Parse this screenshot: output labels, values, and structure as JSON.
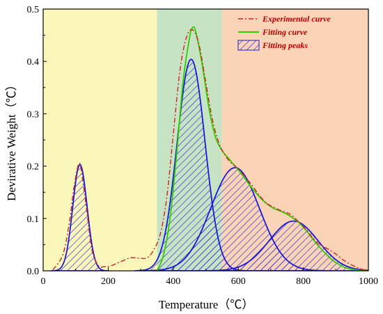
{
  "chart_data": {
    "type": "area",
    "xlabel": "Temperature（℃）",
    "ylabel": "Devirative Weight（℃）",
    "xlim": [
      0,
      1000
    ],
    "ylim": [
      0,
      0.5
    ],
    "xticks": [
      "0",
      "200",
      "400",
      "600",
      "800",
      "1000"
    ],
    "yticks": [
      "0.0",
      "0.1",
      "0.2",
      "0.3",
      "0.4",
      "0.5"
    ],
    "grid": false,
    "legend_position": "top-right",
    "regions": [
      {
        "x_start": 0,
        "x_end": 350,
        "color": "#fbf6b9"
      },
      {
        "x_start": 350,
        "x_end": 550,
        "color": "#c6e3c4"
      },
      {
        "x_start": 550,
        "x_end": 1000,
        "color": "#fbd4b8"
      }
    ],
    "series": [
      {
        "name": "Experimental curve",
        "style": "dash-dot",
        "color": "#d62020",
        "x": [
          30,
          60,
          80,
          95,
          110,
          120,
          135,
          150,
          170,
          190,
          210,
          240,
          270,
          300,
          320,
          340,
          360,
          380,
          400,
          420,
          440,
          460,
          480,
          500,
          520,
          540,
          560,
          580,
          600,
          620,
          640,
          660,
          680,
          700,
          720,
          740,
          760,
          780,
          800,
          820,
          840,
          860,
          880,
          900,
          920,
          940,
          960,
          980,
          1000
        ],
        "y": [
          0.002,
          0.03,
          0.09,
          0.16,
          0.205,
          0.18,
          0.11,
          0.04,
          0.01,
          0.008,
          0.01,
          0.018,
          0.025,
          0.024,
          0.025,
          0.04,
          0.07,
          0.14,
          0.26,
          0.38,
          0.445,
          0.46,
          0.43,
          0.36,
          0.29,
          0.245,
          0.22,
          0.205,
          0.195,
          0.18,
          0.165,
          0.148,
          0.133,
          0.124,
          0.118,
          0.113,
          0.108,
          0.097,
          0.085,
          0.07,
          0.055,
          0.047,
          0.04,
          0.032,
          0.022,
          0.014,
          0.008,
          0.003,
          0.0
        ]
      },
      {
        "name": "Fitting curve",
        "style": "solid",
        "color": "#33cc00",
        "x": [
          350,
          370,
          390,
          410,
          430,
          450,
          460,
          470,
          490,
          510,
          530,
          550,
          570,
          590,
          610,
          630,
          650,
          670,
          690,
          710,
          730,
          750,
          770,
          790,
          810,
          830,
          850,
          870,
          890,
          910,
          930,
          950,
          970,
          990,
          1000
        ],
        "y": [
          0.0,
          0.03,
          0.1,
          0.22,
          0.36,
          0.445,
          0.465,
          0.455,
          0.39,
          0.31,
          0.255,
          0.23,
          0.215,
          0.2,
          0.185,
          0.168,
          0.152,
          0.138,
          0.127,
          0.119,
          0.114,
          0.108,
          0.1,
          0.09,
          0.076,
          0.06,
          0.045,
          0.032,
          0.02,
          0.012,
          0.006,
          0.003,
          0.001,
          0.0,
          0.0
        ]
      },
      {
        "name": "Fitting peaks",
        "style": "hatched",
        "color": "#1a1ad8",
        "peaks": [
          {
            "center": 113,
            "height": 0.203,
            "sigma": 22
          },
          {
            "center": 455,
            "height": 0.404,
            "sigma": 43
          },
          {
            "center": 590,
            "height": 0.197,
            "sigma": 75
          },
          {
            "center": 770,
            "height": 0.095,
            "sigma": 75
          }
        ]
      }
    ]
  }
}
